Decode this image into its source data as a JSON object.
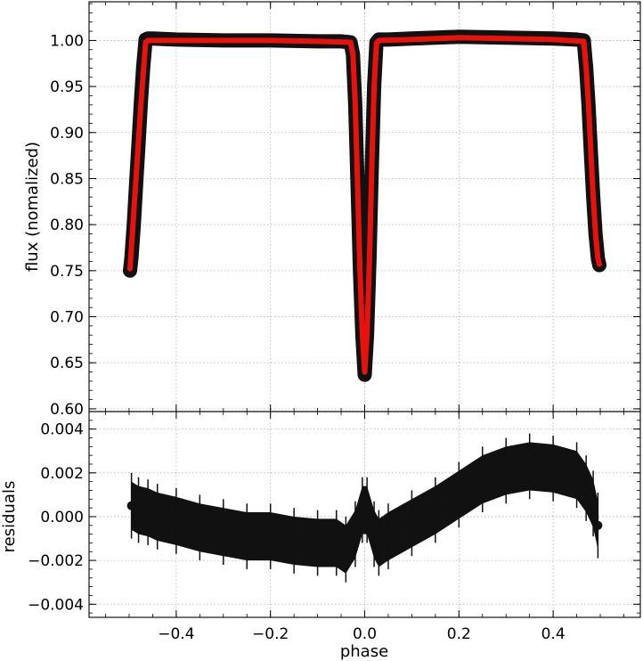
{
  "chart_data": [
    {
      "type": "scatter",
      "panel": "top",
      "title": "",
      "xlabel": "",
      "ylabel": "flux  (nomalized)",
      "xlim": [
        -0.585,
        0.585
      ],
      "ylim": [
        0.597,
        1.042
      ],
      "xticks": [
        -0.4,
        -0.2,
        0.0,
        0.2,
        0.4
      ],
      "yticks": [
        0.6,
        0.65,
        0.7,
        0.75,
        0.8,
        0.85,
        0.9,
        0.95,
        1.0
      ],
      "ytick_labels": [
        "0.60",
        "0.65",
        "0.70",
        "0.75",
        "0.80",
        "0.85",
        "0.90",
        "0.95",
        "1.00"
      ],
      "grid": true,
      "colors": {
        "data": "#111111",
        "model": "#e8120c"
      },
      "series": [
        {
          "kind": "points",
          "x": [
            -0.498,
            -0.495,
            -0.49,
            -0.485,
            -0.48,
            -0.475,
            -0.47,
            -0.465,
            -0.46,
            -0.45,
            -0.4,
            -0.3,
            -0.2,
            -0.1,
            -0.05,
            -0.03,
            -0.025,
            -0.02,
            -0.015,
            -0.01,
            -0.005,
            0.0,
            0.005,
            0.01,
            0.015,
            0.02,
            0.025,
            0.03,
            0.05,
            0.1,
            0.2,
            0.3,
            0.4,
            0.45,
            0.465,
            0.47,
            0.475,
            0.48,
            0.485,
            0.49,
            0.495,
            0.498
          ],
          "y": [
            0.75,
            0.764,
            0.801,
            0.845,
            0.889,
            0.933,
            0.971,
            1.001,
            1.002,
            1.002,
            1.001,
            1.0,
            1.0,
            0.999,
            0.999,
            0.998,
            0.985,
            0.93,
            0.84,
            0.75,
            0.68,
            0.637,
            0.68,
            0.76,
            0.86,
            0.95,
            0.998,
            1.001,
            1.001,
            1.002,
            1.004,
            1.003,
            1.002,
            1.001,
            1.0,
            0.97,
            0.93,
            0.88,
            0.83,
            0.79,
            0.763,
            0.756
          ]
        },
        {
          "kind": "model",
          "x": [
            -0.498,
            -0.475,
            -0.465,
            -0.46,
            -0.45,
            -0.4,
            -0.3,
            -0.2,
            -0.1,
            -0.03,
            -0.025,
            -0.02,
            -0.015,
            -0.01,
            -0.005,
            0.0,
            0.005,
            0.01,
            0.015,
            0.02,
            0.025,
            0.03,
            0.1,
            0.2,
            0.3,
            0.4,
            0.465,
            0.47,
            0.475,
            0.48,
            0.485,
            0.49,
            0.495,
            0.498
          ],
          "y": [
            0.752,
            0.93,
            0.998,
            1.0,
            1.0,
            1.0,
            1.0,
            1.0,
            0.999,
            0.998,
            0.985,
            0.93,
            0.84,
            0.75,
            0.68,
            0.64,
            0.68,
            0.76,
            0.86,
            0.95,
            0.997,
            1.0,
            1.001,
            1.003,
            1.002,
            1.001,
            0.999,
            0.97,
            0.93,
            0.88,
            0.83,
            0.79,
            0.763,
            0.757
          ]
        }
      ]
    },
    {
      "type": "scatter",
      "panel": "bottom",
      "title": "",
      "xlabel": "phase",
      "ylabel": "residuals",
      "xlim": [
        -0.585,
        0.585
      ],
      "ylim": [
        -0.0046,
        0.0048
      ],
      "xticks": [
        -0.4,
        -0.2,
        0.0,
        0.2,
        0.4
      ],
      "xtick_labels": [
        "−0.4",
        "−0.2",
        "0.0",
        "0.2",
        "0.4"
      ],
      "yticks": [
        -0.004,
        -0.002,
        0.0,
        0.002,
        0.004
      ],
      "ytick_labels": [
        "−0.004",
        "−0.002",
        "0.000",
        "0.002",
        "0.004"
      ],
      "grid": true,
      "colors": {
        "data": "#111111"
      },
      "series": [
        {
          "kind": "points_with_errorbars",
          "error": 0.0005,
          "x": [
            -0.495,
            -0.48,
            -0.46,
            -0.44,
            -0.4,
            -0.35,
            -0.3,
            -0.25,
            -0.2,
            -0.15,
            -0.1,
            -0.06,
            -0.04,
            -0.02,
            -0.005,
            0.005,
            0.02,
            0.03,
            0.05,
            0.1,
            0.15,
            0.2,
            0.25,
            0.3,
            0.35,
            0.4,
            0.45,
            0.47,
            0.485,
            0.495
          ],
          "y": [
            0.0005,
            0.0003,
            0.0002,
            0.0,
            -0.0002,
            -0.0005,
            -0.0007,
            -0.0009,
            -0.0009,
            -0.0011,
            -0.0012,
            -0.0012,
            -0.0015,
            -0.0008,
            0.0003,
            0.0003,
            -0.0008,
            -0.0012,
            -0.0009,
            -0.0003,
            0.0003,
            0.001,
            0.0017,
            0.0021,
            0.0023,
            0.0022,
            0.0019,
            0.0013,
            0.0006,
            -0.0004
          ]
        }
      ]
    }
  ]
}
